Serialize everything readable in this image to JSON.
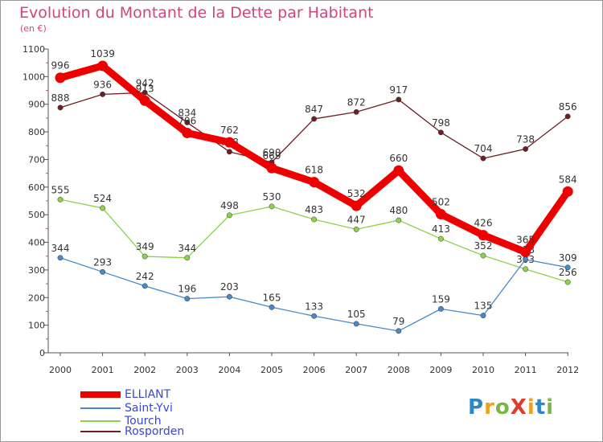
{
  "title": "Evolution du Montant de la Dette par Habitant",
  "subtitle": "(en €)",
  "logo": {
    "text": "ProXiti",
    "letters": [
      {
        "ch": "P",
        "color": "#2e86c8"
      },
      {
        "ch": "r",
        "color": "#f0a020"
      },
      {
        "ch": "o",
        "color": "#7ab640"
      },
      {
        "ch": "X",
        "color": "#e03a2e"
      },
      {
        "ch": "i",
        "color": "#f0a020"
      },
      {
        "ch": "t",
        "color": "#2e86c8"
      },
      {
        "ch": "i",
        "color": "#7ab640"
      }
    ]
  },
  "chart_data": {
    "type": "line",
    "title": "Evolution du Montant de la Dette par Habitant",
    "subtitle": "(en €)",
    "xlabel": "",
    "ylabel": "",
    "categories": [
      "2000",
      "2001",
      "2002",
      "2003",
      "2004",
      "2005",
      "2006",
      "2007",
      "2008",
      "2009",
      "2010",
      "2011",
      "2012"
    ],
    "ylim": [
      0,
      1100
    ],
    "yticks": [
      "0",
      "100",
      "200",
      "300",
      "400",
      "500",
      "600",
      "700",
      "800",
      "900",
      "1000",
      "1100"
    ],
    "grid": false,
    "legend": "bottom-left",
    "series": [
      {
        "name": "ELLIANT",
        "color": "#ee0000",
        "values": [
          996,
          1039,
          913,
          796,
          762,
          669,
          618,
          532,
          660,
          502,
          426,
          365,
          584
        ],
        "labels": [
          "996",
          "1039",
          "913",
          "796",
          "762",
          "669",
          "618",
          "532",
          "660",
          "502",
          "426",
          "365",
          "584"
        ]
      },
      {
        "name": "Saint-Yvi",
        "color": "#4b88c8",
        "values": [
          344,
          293,
          242,
          196,
          203,
          165,
          133,
          105,
          79,
          159,
          135,
          338,
          309
        ],
        "labels": [
          "344",
          "293",
          "242",
          "196",
          "203",
          "165",
          "133",
          "105",
          "79",
          "159",
          "135",
          "338",
          "309"
        ]
      },
      {
        "name": "Tourch",
        "color": "#8cd24a",
        "values": [
          555,
          524,
          349,
          344,
          498,
          530,
          483,
          447,
          480,
          413,
          352,
          303,
          256
        ],
        "labels": [
          "555",
          "524",
          "349",
          "344",
          "498",
          "530",
          "483",
          "447",
          "480",
          "413",
          "352",
          "303",
          "256"
        ]
      },
      {
        "name": "Rosporden",
        "color": "#6e1f24",
        "values": [
          888,
          936,
          942,
          834,
          728,
          690,
          847,
          872,
          917,
          798,
          704,
          738,
          856
        ],
        "labels": [
          "888",
          "936",
          "942",
          "834",
          "728",
          "690",
          "847",
          "872",
          "917",
          "798",
          "704",
          "738",
          "856"
        ]
      }
    ]
  }
}
